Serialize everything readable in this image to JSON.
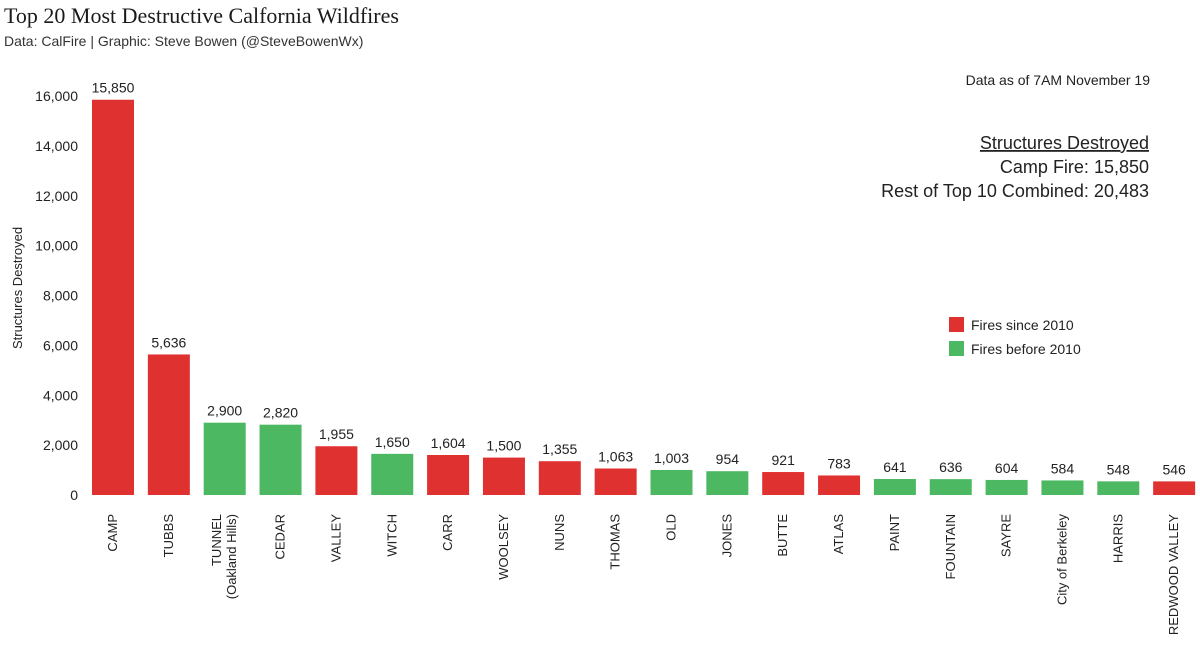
{
  "chart_data": {
    "type": "bar",
    "title": "Top 20 Most Destructive Calfornia Wildfires",
    "subtitle": "Data: CalFire | Graphic: Steve Bowen (@SteveBowenWx)",
    "ylabel": "Structures Destroyed",
    "xlabel": "",
    "ylim": [
      0,
      16000
    ],
    "yticks": [
      0,
      2000,
      4000,
      6000,
      8000,
      10000,
      12000,
      14000,
      16000
    ],
    "ytick_labels": [
      "0",
      "2,000",
      "4,000",
      "6,000",
      "8,000",
      "10,000",
      "12,000",
      "14,000",
      "16,000"
    ],
    "categories": [
      [
        "CAMP"
      ],
      [
        "TUBBS"
      ],
      [
        "TUNNEL",
        "(Oakland Hills)"
      ],
      [
        "CEDAR"
      ],
      [
        "VALLEY"
      ],
      [
        "WITCH"
      ],
      [
        "CARR"
      ],
      [
        "WOOLSEY"
      ],
      [
        "NUNS"
      ],
      [
        "THOMAS"
      ],
      [
        "OLD"
      ],
      [
        "JONES"
      ],
      [
        "BUTTE"
      ],
      [
        "ATLAS"
      ],
      [
        "PAINT"
      ],
      [
        "FOUNTAIN"
      ],
      [
        "SAYRE"
      ],
      [
        "City of Berkeley"
      ],
      [
        "HARRIS"
      ],
      [
        "REDWOOD VALLEY"
      ]
    ],
    "values": [
      15850,
      5636,
      2900,
      2820,
      1955,
      1650,
      1604,
      1500,
      1355,
      1063,
      1003,
      954,
      921,
      783,
      641,
      636,
      604,
      584,
      548,
      546
    ],
    "value_labels": [
      "15,850",
      "5,636",
      "2,900",
      "2,820",
      "1,955",
      "1,650",
      "1,604",
      "1,500",
      "1,355",
      "1,063",
      "1,003",
      "954",
      "921",
      "783",
      "641",
      "636",
      "604",
      "584",
      "548",
      "546"
    ],
    "groups": [
      "since",
      "since",
      "before",
      "before",
      "since",
      "before",
      "since",
      "since",
      "since",
      "since",
      "before",
      "before",
      "since",
      "since",
      "before",
      "before",
      "before",
      "before",
      "before",
      "since"
    ],
    "legend": [
      {
        "key": "since",
        "label": "Fires since 2010",
        "color": "#e03131"
      },
      {
        "key": "before",
        "label": "Fires before 2010",
        "color": "#4cb862"
      }
    ],
    "legend_position": "right",
    "annotations": {
      "date_note": "Data as of 7AM November 19",
      "box_heading": "Structures Destroyed",
      "box_line1": "Camp Fire: 15,850",
      "box_line2": "Rest of Top 10 Combined: 20,483"
    }
  }
}
